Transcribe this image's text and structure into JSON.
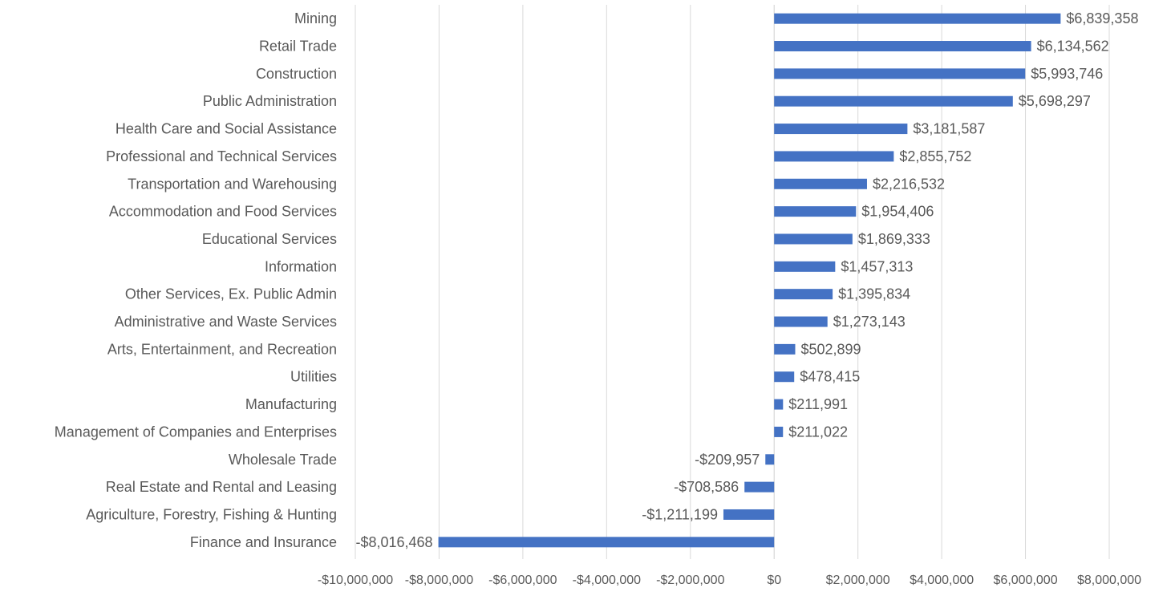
{
  "chart_data": {
    "type": "bar",
    "orientation": "horizontal",
    "title": "",
    "xlabel": "",
    "ylabel": "",
    "xlim": [
      -10000000,
      8000000
    ],
    "x_ticks": [
      -10000000,
      -8000000,
      -6000000,
      -4000000,
      -2000000,
      0,
      2000000,
      4000000,
      6000000,
      8000000
    ],
    "x_tick_labels": [
      "-$10,000,000",
      "-$8,000,000",
      "-$6,000,000",
      "-$4,000,000",
      "-$2,000,000",
      "$0",
      "$2,000,000",
      "$4,000,000",
      "$6,000,000",
      "$8,000,000"
    ],
    "grid": true,
    "legend": "none",
    "bar_color": "#4472C4",
    "categories": [
      "Mining",
      "Retail Trade",
      "Construction",
      "Public Administration",
      "Health Care and Social Assistance",
      "Professional and Technical Services",
      "Transportation and Warehousing",
      "Accommodation and Food Services",
      "Educational Services",
      "Information",
      "Other Services, Ex. Public Admin",
      "Administrative and Waste Services",
      "Arts, Entertainment, and Recreation",
      "Utilities",
      "Manufacturing",
      "Management of Companies and Enterprises",
      "Wholesale Trade",
      "Real Estate and Rental and Leasing",
      "Agriculture, Forestry, Fishing & Hunting",
      "Finance and Insurance"
    ],
    "values": [
      6839358,
      6134562,
      5993746,
      5698297,
      3181587,
      2855752,
      2216532,
      1954406,
      1869333,
      1457313,
      1395834,
      1273143,
      502899,
      478415,
      211991,
      211022,
      -209957,
      -708586,
      -1211199,
      -8016468
    ],
    "value_labels": [
      "$6,839,358",
      "$6,134,562",
      "$5,993,746",
      "$5,698,297",
      "$3,181,587",
      "$2,855,752",
      "$2,216,532",
      "$1,954,406",
      "$1,869,333",
      "$1,457,313",
      "$1,395,834",
      "$1,273,143",
      "$502,899",
      "$478,415",
      "$211,991",
      "$211,022",
      "-$209,957",
      "-$708,586",
      "-$1,211,199",
      "-$8,016,468"
    ]
  }
}
